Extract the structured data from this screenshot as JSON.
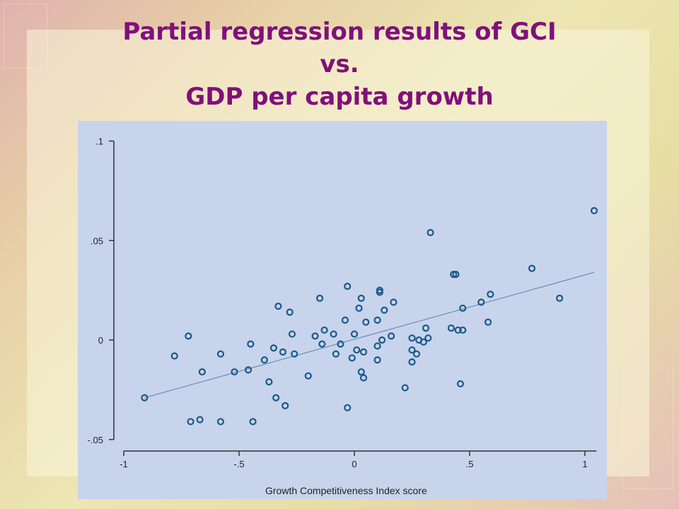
{
  "title_lines": [
    "Partial regression results of GCI",
    "vs.",
    "GDP per capita growth"
  ],
  "colors": {
    "title": "#80107a",
    "plot_bg": "#c8d4ec",
    "marker": "#1a5a8a",
    "fit_line": "#5a82ad"
  },
  "chart_data": {
    "type": "scatter",
    "xlabel": "Growth Competitiveness Index score",
    "ylabel": "",
    "xlim": [
      -1,
      1.05
    ],
    "ylim": [
      -0.05,
      0.1
    ],
    "x_ticks": [
      -1,
      -0.5,
      0,
      0.5,
      1
    ],
    "x_tick_labels": [
      "-1",
      "-.5",
      "0",
      ".5",
      "1"
    ],
    "y_ticks": [
      -0.05,
      0,
      0.05,
      0.1
    ],
    "y_tick_labels": [
      "-.05",
      "0",
      ".05",
      ".1"
    ],
    "grid": false,
    "fit_line": {
      "x": [
        -0.91,
        1.04
      ],
      "y": [
        -0.029,
        0.034
      ]
    },
    "points": [
      {
        "x": -0.91,
        "y": -0.029
      },
      {
        "x": -0.78,
        "y": -0.008
      },
      {
        "x": -0.72,
        "y": 0.002
      },
      {
        "x": -0.71,
        "y": -0.041
      },
      {
        "x": -0.67,
        "y": -0.04
      },
      {
        "x": -0.66,
        "y": -0.016
      },
      {
        "x": -0.58,
        "y": -0.007
      },
      {
        "x": -0.58,
        "y": -0.041
      },
      {
        "x": -0.52,
        "y": -0.016
      },
      {
        "x": -0.46,
        "y": -0.015
      },
      {
        "x": -0.45,
        "y": -0.002
      },
      {
        "x": -0.44,
        "y": -0.041
      },
      {
        "x": -0.39,
        "y": -0.01
      },
      {
        "x": -0.37,
        "y": -0.021
      },
      {
        "x": -0.35,
        "y": -0.004
      },
      {
        "x": -0.34,
        "y": -0.029
      },
      {
        "x": -0.33,
        "y": 0.017
      },
      {
        "x": -0.31,
        "y": -0.006
      },
      {
        "x": -0.3,
        "y": -0.033
      },
      {
        "x": -0.28,
        "y": 0.014
      },
      {
        "x": -0.27,
        "y": 0.003
      },
      {
        "x": -0.26,
        "y": -0.007
      },
      {
        "x": -0.2,
        "y": -0.018
      },
      {
        "x": -0.17,
        "y": 0.002
      },
      {
        "x": -0.15,
        "y": 0.021
      },
      {
        "x": -0.14,
        "y": -0.002
      },
      {
        "x": -0.13,
        "y": 0.005
      },
      {
        "x": -0.09,
        "y": 0.003
      },
      {
        "x": -0.08,
        "y": -0.007
      },
      {
        "x": -0.06,
        "y": -0.002
      },
      {
        "x": -0.04,
        "y": 0.01
      },
      {
        "x": -0.03,
        "y": 0.027
      },
      {
        "x": -0.03,
        "y": -0.034
      },
      {
        "x": -0.01,
        "y": -0.009
      },
      {
        "x": 0.0,
        "y": 0.003
      },
      {
        "x": 0.01,
        "y": -0.005
      },
      {
        "x": 0.02,
        "y": 0.016
      },
      {
        "x": 0.03,
        "y": 0.021
      },
      {
        "x": 0.03,
        "y": -0.016
      },
      {
        "x": 0.04,
        "y": -0.019
      },
      {
        "x": 0.04,
        "y": -0.006
      },
      {
        "x": 0.05,
        "y": 0.009
      },
      {
        "x": 0.1,
        "y": 0.01
      },
      {
        "x": 0.1,
        "y": -0.003
      },
      {
        "x": 0.1,
        "y": -0.01
      },
      {
        "x": 0.11,
        "y": 0.025
      },
      {
        "x": 0.11,
        "y": 0.024
      },
      {
        "x": 0.12,
        "y": -0.0
      },
      {
        "x": 0.13,
        "y": 0.015
      },
      {
        "x": 0.16,
        "y": 0.002
      },
      {
        "x": 0.17,
        "y": 0.019
      },
      {
        "x": 0.22,
        "y": -0.024
      },
      {
        "x": 0.25,
        "y": 0.001
      },
      {
        "x": 0.25,
        "y": -0.005
      },
      {
        "x": 0.25,
        "y": -0.011
      },
      {
        "x": 0.27,
        "y": -0.007
      },
      {
        "x": 0.28,
        "y": 0.0
      },
      {
        "x": 0.3,
        "y": -0.001
      },
      {
        "x": 0.31,
        "y": 0.006
      },
      {
        "x": 0.32,
        "y": 0.001
      },
      {
        "x": 0.33,
        "y": 0.054
      },
      {
        "x": 0.42,
        "y": 0.006
      },
      {
        "x": 0.43,
        "y": 0.033
      },
      {
        "x": 0.44,
        "y": 0.033
      },
      {
        "x": 0.45,
        "y": 0.005
      },
      {
        "x": 0.46,
        "y": -0.022
      },
      {
        "x": 0.47,
        "y": 0.016
      },
      {
        "x": 0.47,
        "y": 0.005
      },
      {
        "x": 0.55,
        "y": 0.019
      },
      {
        "x": 0.58,
        "y": 0.009
      },
      {
        "x": 0.59,
        "y": 0.023
      },
      {
        "x": 0.77,
        "y": 0.036
      },
      {
        "x": 0.89,
        "y": 0.021
      },
      {
        "x": 1.04,
        "y": 0.065
      }
    ]
  }
}
